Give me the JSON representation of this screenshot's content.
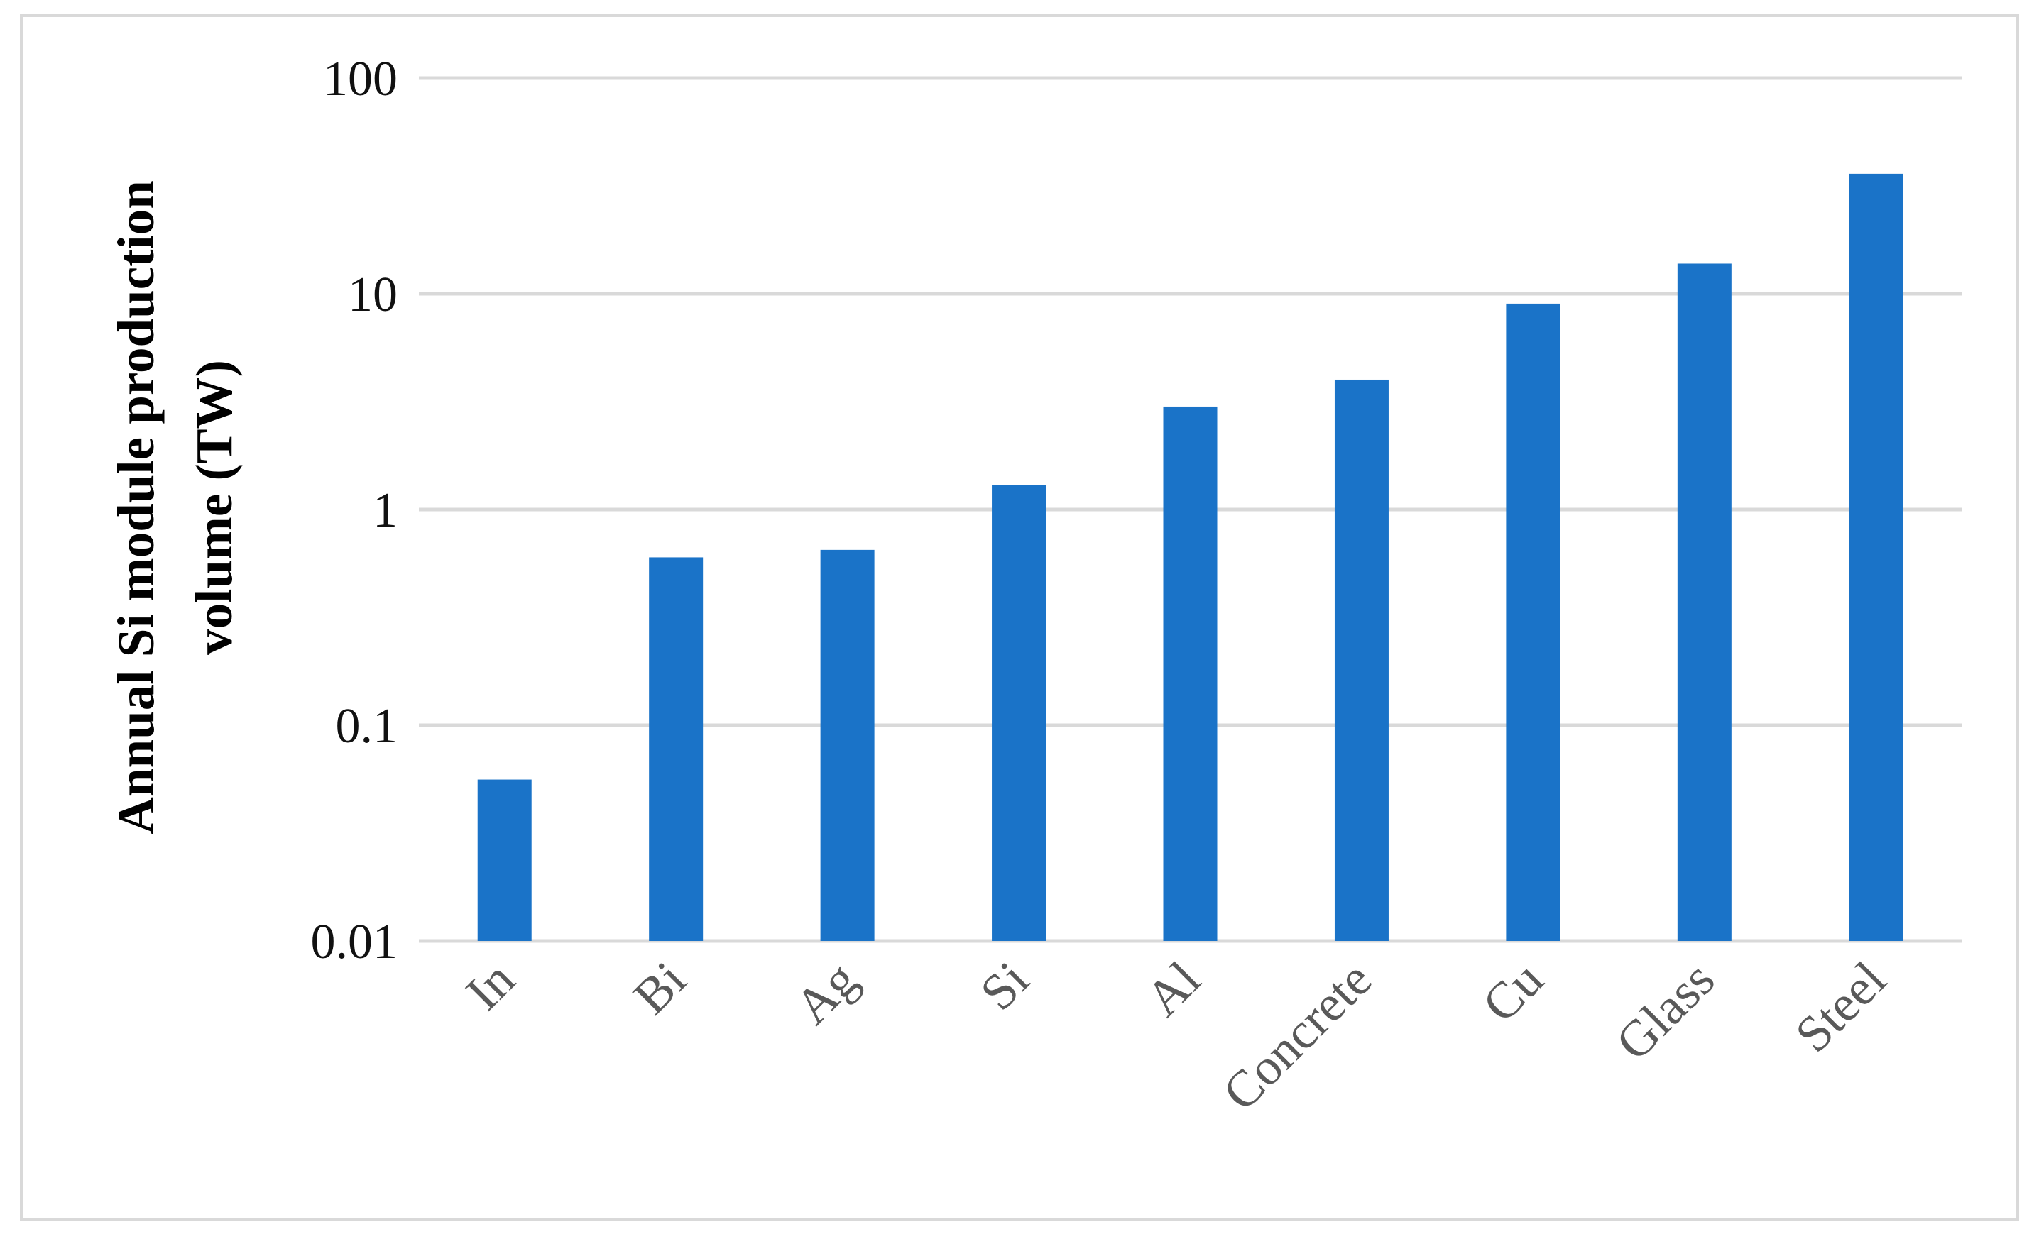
{
  "chart_data": {
    "type": "bar",
    "ylabel": "Annual Si module production volume (TW)",
    "categories": [
      "In",
      "Bi",
      "Ag",
      "Si",
      "Al",
      "Concrete",
      "Cu",
      "Glass",
      "Steel"
    ],
    "values": [
      0.056,
      0.6,
      0.65,
      1.3,
      3.0,
      4.0,
      9.0,
      13.8,
      36
    ],
    "color": "#1a73c8",
    "ylim": [
      0.01,
      100
    ],
    "yticks": [
      0.01,
      0.1,
      1,
      10,
      100
    ],
    "log_scale": true,
    "grid": true
  }
}
